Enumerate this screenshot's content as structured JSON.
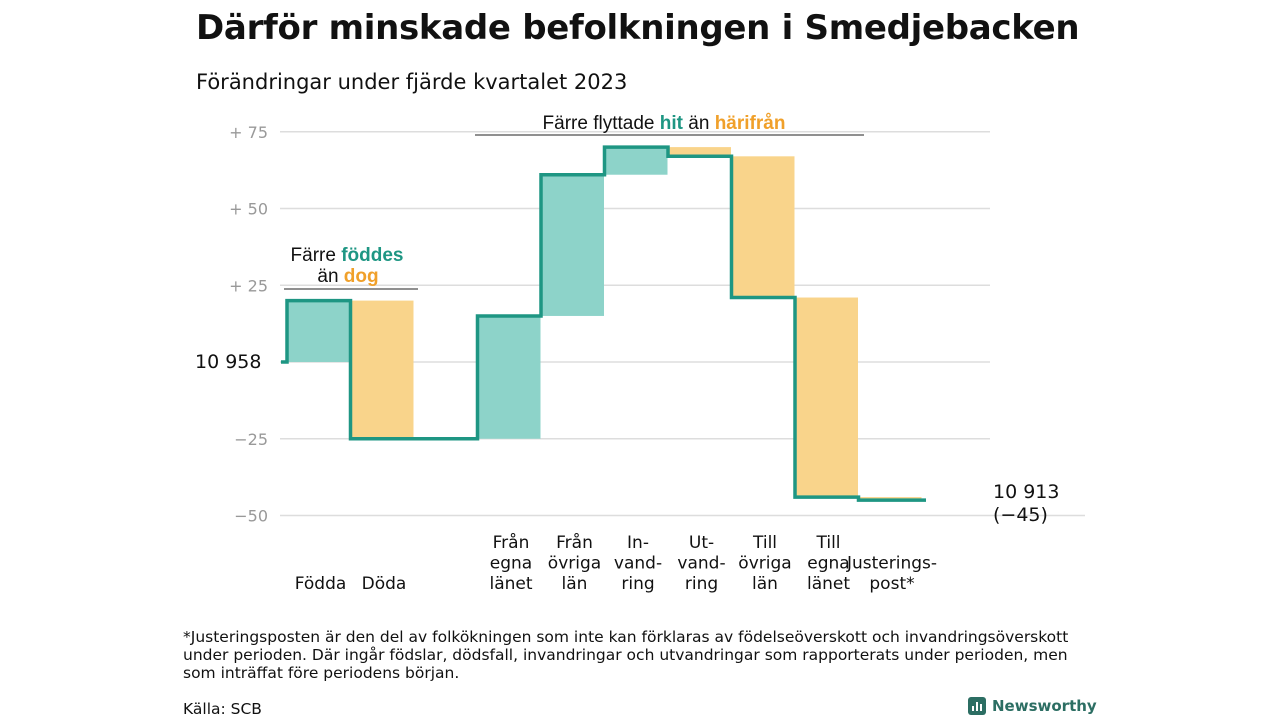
{
  "title": "Därför minskade befolkningen i Smedjebacken",
  "subtitle": "Förändringar under fjärde kvartalet 2023",
  "footnote": "*Justeringsposten är den del av folkökningen som inte kan förklaras av födelseöverskott och invandringsöverskott under perioden. Där ingår födslar, dödsfall, invandringar och utvandringar som rapporterats under perioden, men som inträffat före periodens början.",
  "source": "Källa: SCB",
  "brand": "Newsworthy",
  "colors": {
    "increase": "#8dd3c9",
    "decrease": "#f9d48b",
    "line": "#1e9683",
    "accent_teal": "#1e9683",
    "accent_orange": "#f0a02a",
    "grid": "#dddddd",
    "tick": "#999999"
  },
  "annotations": {
    "births_deaths": {
      "line1_prefix": "Färre",
      "line1_highlight": "föddes",
      "line2_prefix": "än",
      "line2_highlight": "dog"
    },
    "migration": {
      "prefix": "Färre flyttade",
      "highlight1": "hit",
      "middle": "än",
      "highlight2": "härifrån"
    }
  },
  "chart_data": {
    "type": "waterfall",
    "start_label": "10  958",
    "end_label": "10 913",
    "end_change_label": "(−45)",
    "baseline": 10958,
    "ylim": [
      -50,
      75
    ],
    "y_ticks": [
      {
        "value": 75,
        "label": "+  75"
      },
      {
        "value": 50,
        "label": "+  50"
      },
      {
        "value": 25,
        "label": "+  25"
      },
      {
        "value": 0,
        "label": ""
      },
      {
        "value": -25,
        "label": "−25"
      },
      {
        "value": -50,
        "label": "−50"
      }
    ],
    "grid": true,
    "steps": [
      {
        "label": [
          "Födda"
        ],
        "value": 20,
        "kind": "increase"
      },
      {
        "label": [
          "Döda"
        ],
        "value": -45,
        "kind": "decrease"
      },
      {
        "label": [],
        "value": 0,
        "kind": "gap"
      },
      {
        "label": [
          "Från",
          "egna",
          "länet"
        ],
        "value": 40,
        "kind": "increase"
      },
      {
        "label": [
          "Från",
          "övriga",
          "län"
        ],
        "value": 46,
        "kind": "increase"
      },
      {
        "label": [
          "In-",
          "vand-",
          "ring"
        ],
        "value": 9,
        "kind": "increase"
      },
      {
        "label": [
          "Ut-",
          "vand-",
          "ring"
        ],
        "value": -3,
        "kind": "decrease"
      },
      {
        "label": [
          "Till",
          "övriga",
          "län"
        ],
        "value": -46,
        "kind": "decrease"
      },
      {
        "label": [
          "Till",
          "egna",
          "länet"
        ],
        "value": -65,
        "kind": "decrease"
      },
      {
        "label": [
          "Justerings-",
          "post*"
        ],
        "value": -1,
        "kind": "decrease"
      }
    ]
  }
}
